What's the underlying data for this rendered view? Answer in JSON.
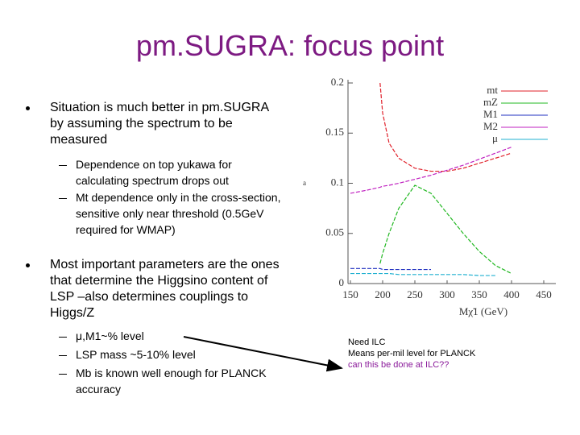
{
  "title": "pm.SUGRA: focus point",
  "bullets": [
    {
      "text": "Situation is much better in pm.SUGRA by assuming the spectrum to be measured",
      "sub": [
        "Dependence on top yukawa for calculating spectrum drops out",
        "Mt dependence only in the cross-section, sensitive only near threshold (0.5GeV required for WMAP)"
      ]
    },
    {
      "text": "Most important parameters are the ones that determine the Higgsino content of LSP –also determines couplings to Higgs/Z",
      "sub": [
        "μ,M1~% level",
        "LSP mass ~5-10% level",
        "Mb is known well enough for PLANCK accuracy"
      ]
    }
  ],
  "annotations": [
    "Need ILC",
    "Means per-mil level for PLANCK",
    "can this be done at ILC??"
  ],
  "chart_data": {
    "type": "line",
    "xlabel": "Mχ̃1 (GeV)",
    "ylabel": "a",
    "x": [
      150,
      175,
      196,
      200,
      210,
      225,
      250,
      275,
      300,
      325,
      350,
      375,
      400
    ],
    "series": [
      {
        "name": "mt",
        "color": "#e0202a",
        "values": [
          null,
          null,
          0.2,
          0.17,
          0.14,
          0.125,
          0.115,
          0.112,
          0.112,
          0.115,
          0.12,
          0.125,
          0.13
        ]
      },
      {
        "name": "mZ",
        "color": "#22b822",
        "values": [
          null,
          null,
          0.02,
          0.03,
          0.05,
          0.075,
          0.098,
          0.09,
          0.07,
          0.05,
          0.032,
          0.018,
          0.01
        ]
      },
      {
        "name": "M1",
        "color": "#2030c0",
        "values": [
          0.015,
          0.015,
          0.015,
          0.014,
          0.014,
          0.014,
          0.014,
          0.014,
          null,
          null,
          null,
          null,
          null
        ]
      },
      {
        "name": "M2",
        "color": "#c020c0",
        "values": [
          0.09,
          0.093,
          0.096,
          0.097,
          0.098,
          0.1,
          0.104,
          0.108,
          0.113,
          0.118,
          0.124,
          0.13,
          0.136
        ]
      },
      {
        "name": "μ",
        "color": "#20b0d0",
        "values": [
          0.01,
          0.01,
          0.01,
          0.01,
          0.01,
          0.009,
          0.009,
          0.009,
          0.009,
          0.009,
          0.008,
          0.008,
          null
        ]
      }
    ],
    "xlim": [
      150,
      450
    ],
    "xticks": [
      150,
      200,
      250,
      300,
      350,
      400,
      450
    ],
    "ylim": [
      0,
      0.2
    ],
    "yticks": [
      0,
      0.05,
      0.1,
      0.15,
      0.2
    ]
  }
}
